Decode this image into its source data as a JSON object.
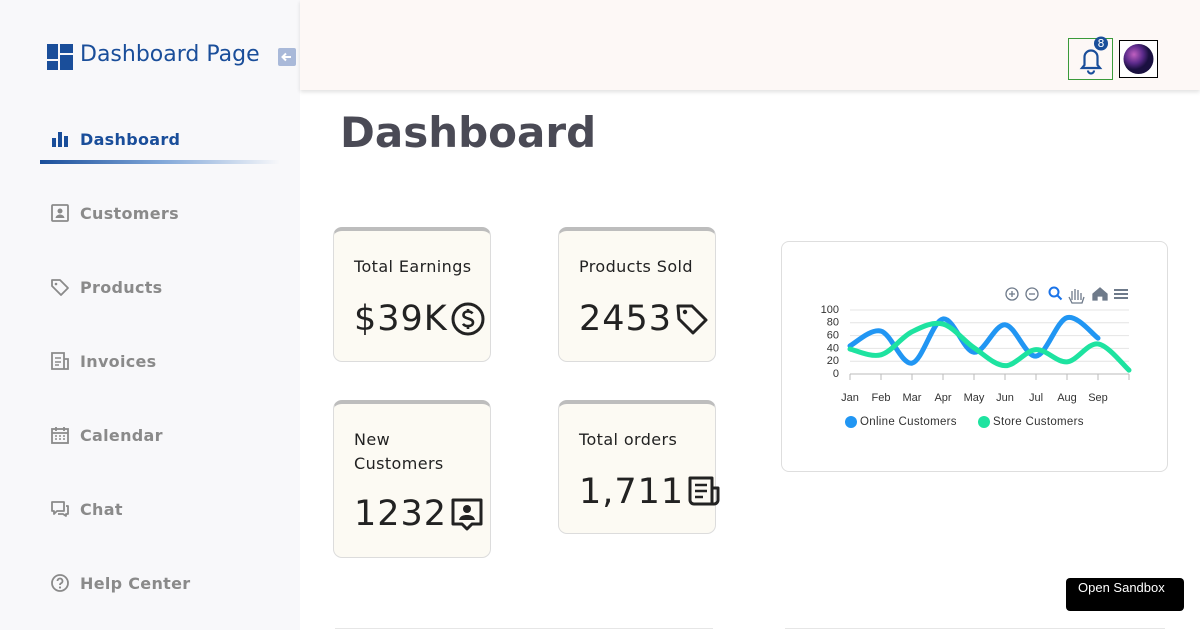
{
  "sidebar": {
    "brand": "Dashboard Page",
    "nav": [
      "Dashboard",
      "Customers",
      "Products",
      "Invoices",
      "Calendar",
      "Chat",
      "Help Center"
    ]
  },
  "header": {
    "notification_count": "8"
  },
  "page_title": "Dashboard",
  "cards": [
    {
      "label": "Total Earnings",
      "value": "$39K"
    },
    {
      "label": "Products Sold",
      "value": "2453"
    },
    {
      "label": "New Customers",
      "value": "1232"
    },
    {
      "label": "Total orders",
      "value": "1,711"
    }
  ],
  "chart_data": {
    "type": "line",
    "categories": [
      "Jan",
      "Feb",
      "Mar",
      "Apr",
      "May",
      "Jun",
      "Jul",
      "Aug",
      "Sep",
      null
    ],
    "series": [
      {
        "name": "Online Customers",
        "color": "#2196f3",
        "values": [
          44,
          67,
          17,
          86,
          34,
          77,
          28,
          88,
          56,
          null
        ]
      },
      {
        "name": "Store Customers",
        "color": "#1ee3a0",
        "values": [
          39,
          30,
          66,
          78,
          41,
          13,
          38,
          19,
          47,
          6
        ]
      }
    ],
    "ylim": [
      0,
      100
    ],
    "yticks": [
      0,
      20,
      40,
      60,
      80,
      100
    ],
    "grid": true,
    "legend": "bottom"
  },
  "sandbox_button": "Open Sandbox"
}
